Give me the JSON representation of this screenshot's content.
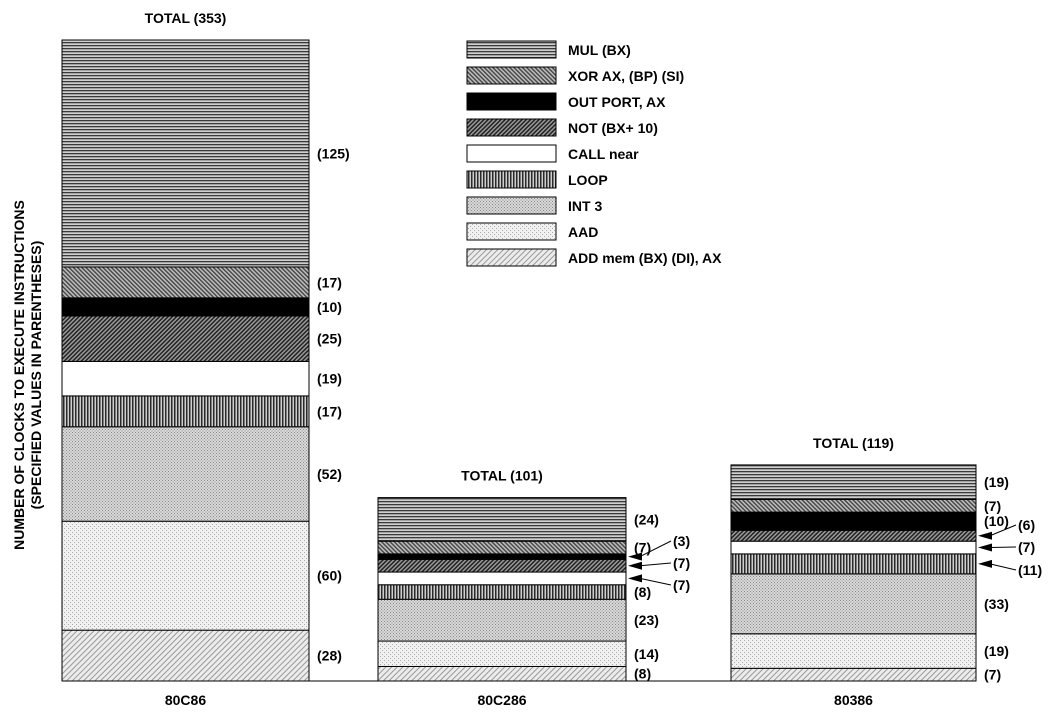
{
  "chart_data": {
    "type": "bar",
    "stacked": true,
    "title": "",
    "xlabel": "",
    "ylabel_lines": [
      "NUMBER OF CLOCKS TO EXECUTE INSTRUCTIONS",
      "(SPECIFIED VALUES IN PARENTHESES)"
    ],
    "categories": [
      "80C86",
      "80C286",
      "80386"
    ],
    "totals": [
      "TOTAL (353)",
      "TOTAL (101)",
      "TOTAL (119)"
    ],
    "series": [
      {
        "name": "MUL (BX)",
        "pattern": "mul",
        "values": [
          125,
          24,
          19
        ],
        "labels": [
          "(125)",
          "(24)",
          "(19)"
        ]
      },
      {
        "name": "XOR AX, (BP) (SI)",
        "pattern": "xor",
        "values": [
          17,
          7,
          7
        ],
        "labels": [
          "(17)",
          "(7)",
          "(7)"
        ]
      },
      {
        "name": "OUT PORT, AX",
        "pattern": "out",
        "values": [
          10,
          3,
          10
        ],
        "labels": [
          "(10)",
          "(3)",
          "(10)"
        ]
      },
      {
        "name": "NOT (BX+ 10)",
        "pattern": "not",
        "values": [
          25,
          7,
          6
        ],
        "labels": [
          "(25)",
          "(7)",
          "(6)"
        ]
      },
      {
        "name": "CALL near",
        "pattern": "call",
        "values": [
          19,
          7,
          7
        ],
        "labels": [
          "(19)",
          "(7)",
          "(7)"
        ]
      },
      {
        "name": "LOOP",
        "pattern": "loop",
        "values": [
          17,
          8,
          11
        ],
        "labels": [
          "(17)",
          "(8)",
          "(11)"
        ]
      },
      {
        "name": "INT 3",
        "pattern": "int3",
        "values": [
          52,
          23,
          33
        ],
        "labels": [
          "(52)",
          "(23)",
          "(33)"
        ]
      },
      {
        "name": "AAD",
        "pattern": "aad",
        "values": [
          60,
          14,
          19
        ],
        "labels": [
          "(60)",
          "(14)",
          "(19)"
        ]
      },
      {
        "name": "ADD mem (BX) (DI), AX",
        "pattern": "add",
        "values": [
          28,
          8,
          7
        ],
        "labels": [
          "(28)",
          "(8)",
          "(7)"
        ]
      }
    ],
    "legend_position": "top-center",
    "grid": false
  }
}
